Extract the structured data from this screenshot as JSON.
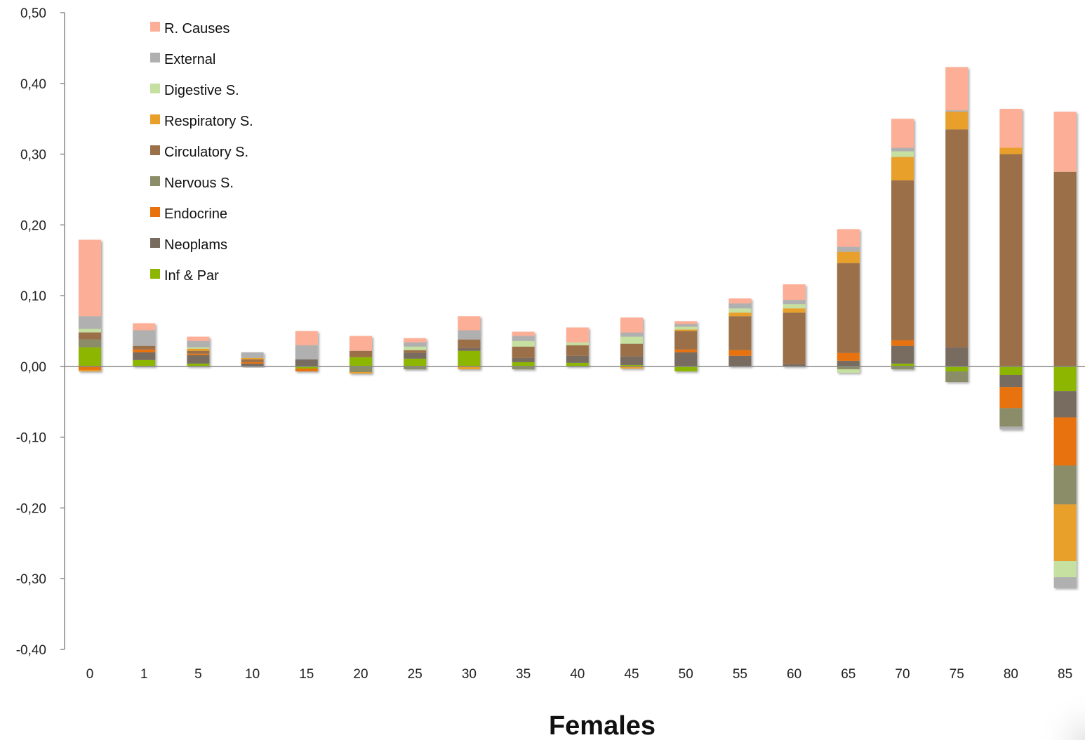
{
  "chart_data": {
    "type": "bar",
    "stacked": true,
    "xlabel": "Females",
    "ylabel": "",
    "ylim": [
      -0.4,
      0.5
    ],
    "y_ticks": [
      "0,50",
      "0,40",
      "0,30",
      "0,20",
      "0,10",
      "0,00",
      "-0,10",
      "-0,20",
      "-0,30",
      "-0,40"
    ],
    "y_tick_values": [
      0.5,
      0.4,
      0.3,
      0.2,
      0.1,
      0.0,
      -0.1,
      -0.2,
      -0.3,
      -0.4
    ],
    "grid": false,
    "legend_position": "top-left",
    "categories": [
      "0",
      "1",
      "5",
      "10",
      "15",
      "20",
      "25",
      "30",
      "35",
      "40",
      "45",
      "50",
      "55",
      "60",
      "65",
      "70",
      "75",
      "80",
      "85"
    ],
    "series": [
      {
        "name": "Inf & Par",
        "color": "#8db600",
        "values": [
          0.027,
          0.009,
          0.004,
          0.0,
          -0.003,
          0.013,
          0.011,
          0.022,
          0.006,
          0.005,
          0.002,
          -0.007,
          0.0,
          0.0,
          0.0,
          0.004,
          -0.007,
          -0.012,
          -0.035
        ]
      },
      {
        "name": "Neoplams",
        "color": "#786c60",
        "values": [
          0.0,
          0.011,
          0.012,
          0.004,
          0.01,
          0.0,
          0.008,
          0.004,
          0.006,
          0.01,
          0.012,
          0.02,
          0.015,
          0.003,
          0.008,
          0.025,
          0.027,
          -0.017,
          -0.037
        ]
      },
      {
        "name": "Endocrine",
        "color": "#e8720c",
        "values": [
          -0.005,
          0.004,
          0.002,
          0.002,
          -0.004,
          0.0,
          0.0,
          0.0,
          0.0,
          0.0,
          0.0,
          0.004,
          0.008,
          0.0,
          0.011,
          0.008,
          0.0,
          -0.03,
          -0.068
        ]
      },
      {
        "name": "Nervous S.",
        "color": "#8b8c68",
        "values": [
          0.011,
          0.0,
          0.0,
          0.0,
          0.0,
          -0.008,
          -0.004,
          0.0,
          -0.004,
          0.0,
          0.0,
          0.0,
          0.0,
          0.0,
          -0.004,
          -0.004,
          -0.015,
          -0.026,
          -0.055
        ]
      },
      {
        "name": "Circulatory S.",
        "color": "#9b7049",
        "values": [
          0.01,
          0.005,
          0.004,
          0.004,
          0.0,
          0.009,
          0.004,
          0.012,
          0.016,
          0.015,
          0.018,
          0.026,
          0.048,
          0.073,
          0.127,
          0.226,
          0.308,
          0.3,
          0.275
        ]
      },
      {
        "name": "Respiratory S.",
        "color": "#e8a02a",
        "values": [
          -0.002,
          0.0,
          0.003,
          0.002,
          0.0,
          -0.002,
          0.0,
          -0.004,
          0.0,
          0.0,
          -0.003,
          0.002,
          0.005,
          0.006,
          0.016,
          0.033,
          0.025,
          0.009,
          -0.08
        ]
      },
      {
        "name": "Digestive S.",
        "color": "#c5e0a0",
        "values": [
          0.005,
          0.0,
          0.002,
          0.0,
          0.0,
          0.0,
          0.005,
          0.0,
          0.008,
          0.004,
          0.01,
          0.004,
          0.006,
          0.006,
          -0.005,
          0.008,
          0.0,
          0.0,
          -0.023
        ]
      },
      {
        "name": "External",
        "color": "#b0b0b0",
        "values": [
          0.018,
          0.022,
          0.009,
          0.008,
          0.02,
          0.0,
          0.006,
          0.013,
          0.007,
          0.0,
          0.006,
          0.004,
          0.007,
          0.006,
          0.007,
          0.005,
          0.002,
          -0.004,
          -0.015
        ]
      },
      {
        "name": "R. Causes",
        "color": "#fcae96",
        "values": [
          0.108,
          0.01,
          0.006,
          0.0,
          0.02,
          0.021,
          0.006,
          0.02,
          0.006,
          0.021,
          0.021,
          0.004,
          0.007,
          0.022,
          0.025,
          0.041,
          0.061,
          0.055,
          0.085
        ]
      }
    ]
  }
}
